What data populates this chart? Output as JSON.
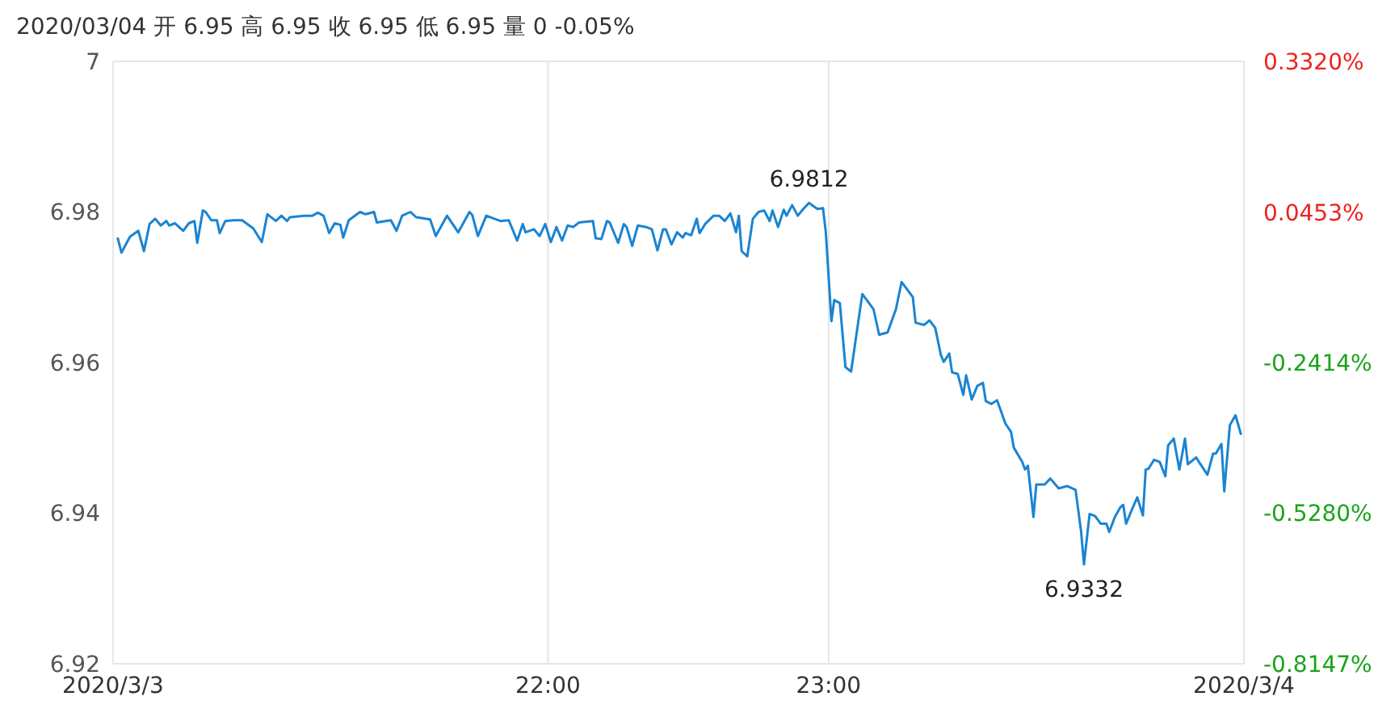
{
  "chart_data": {
    "type": "line",
    "title": "2020/03/04 开 6.95 高 6.95 收 6.95 低 6.95 量 0 -0.05%",
    "x": [
      20.466,
      20.48,
      20.51,
      20.54,
      20.56,
      20.58,
      20.6,
      20.62,
      20.64,
      20.65,
      20.67,
      20.7,
      20.72,
      20.74,
      20.75,
      20.77,
      20.78,
      20.8,
      20.82,
      20.83,
      20.85,
      20.88,
      20.91,
      20.95,
      20.98,
      21.0,
      21.03,
      21.05,
      21.07,
      21.08,
      21.13,
      21.16,
      21.18,
      21.2,
      21.22,
      21.24,
      21.26,
      21.27,
      21.29,
      21.33,
      21.35,
      21.38,
      21.39,
      21.44,
      21.46,
      21.48,
      21.51,
      21.53,
      21.55,
      21.58,
      21.6,
      21.64,
      21.68,
      21.72,
      21.73,
      21.75,
      21.78,
      21.83,
      21.86,
      21.89,
      21.91,
      21.92,
      21.95,
      21.97,
      21.99,
      22.01,
      22.03,
      22.05,
      22.07,
      22.09,
      22.11,
      22.16,
      22.17,
      22.19,
      22.21,
      22.22,
      22.25,
      22.27,
      22.28,
      22.3,
      22.32,
      22.35,
      22.37,
      22.39,
      22.41,
      22.42,
      22.44,
      22.46,
      22.48,
      22.49,
      22.51,
      22.53,
      22.54,
      22.56,
      22.59,
      22.61,
      22.63,
      22.65,
      22.67,
      22.68,
      22.69,
      22.71,
      22.73,
      22.75,
      22.77,
      22.79,
      22.8,
      22.82,
      22.84,
      22.85,
      22.87,
      22.89,
      22.91,
      22.93,
      22.96,
      22.98,
      22.99,
      23.01,
      23.02,
      23.04,
      23.06,
      23.08,
      23.12,
      23.16,
      23.18,
      23.21,
      23.24,
      23.26,
      23.3,
      23.31,
      23.34,
      23.36,
      23.38,
      23.4,
      23.41,
      23.43,
      23.44,
      23.46,
      23.48,
      23.49,
      23.51,
      23.53,
      23.55,
      23.56,
      23.58,
      23.6,
      23.61,
      23.63,
      23.65,
      23.66,
      23.69,
      23.7,
      23.71,
      23.73,
      23.74,
      23.77,
      23.79,
      23.82,
      23.85,
      23.88,
      23.9,
      23.91,
      23.93,
      23.95,
      23.97,
      23.99,
      24.0,
      24.02,
      24.04,
      24.05,
      24.06,
      24.08,
      24.1,
      24.12,
      24.13,
      24.14,
      24.16,
      24.18,
      24.2,
      24.21,
      24.23,
      24.25,
      24.27,
      24.28,
      24.31,
      24.32,
      24.35,
      24.37,
      24.38,
      24.4,
      24.41,
      24.43,
      24.45,
      24.47
    ],
    "series": [
      {
        "color": "#1a84d2",
        "values": [
          6.9766,
          6.9746,
          6.9767,
          6.9775,
          6.9748,
          6.9784,
          6.9791,
          6.9782,
          6.9788,
          6.9782,
          6.9785,
          6.9775,
          6.9785,
          6.9788,
          6.9759,
          6.9802,
          6.98,
          6.9789,
          6.9789,
          6.9772,
          6.9788,
          6.9789,
          6.9789,
          6.9778,
          6.976,
          6.9797,
          6.9788,
          6.9795,
          6.9788,
          6.9793,
          6.9795,
          6.9795,
          6.9799,
          6.9795,
          6.9772,
          6.9785,
          6.9783,
          6.9766,
          6.9789,
          6.98,
          6.9797,
          6.98,
          6.9786,
          6.9789,
          6.9775,
          6.9795,
          6.98,
          6.9793,
          6.9792,
          6.979,
          6.9768,
          6.9795,
          6.9773,
          6.98,
          6.9796,
          6.9768,
          6.9795,
          6.9788,
          6.9789,
          6.9762,
          6.9784,
          6.9773,
          6.9777,
          6.9768,
          6.9784,
          6.976,
          6.978,
          6.9762,
          6.9782,
          6.978,
          6.9786,
          6.9788,
          6.9765,
          6.9764,
          6.9788,
          6.9786,
          6.9759,
          6.9784,
          6.978,
          6.9755,
          6.9782,
          6.978,
          6.9777,
          6.9749,
          6.9777,
          6.9777,
          6.9757,
          6.9773,
          6.9766,
          6.9772,
          6.9769,
          6.9791,
          6.9772,
          6.9784,
          6.9795,
          6.9795,
          6.9788,
          6.9798,
          6.9773,
          6.9795,
          6.9748,
          6.9741,
          6.9791,
          6.98,
          6.9802,
          6.9788,
          6.9802,
          6.978,
          6.9803,
          6.9795,
          6.9809,
          6.9795,
          6.9804,
          6.9812,
          6.9804,
          6.9805,
          6.9773,
          6.9655,
          6.9683,
          6.9679,
          6.9594,
          6.9588,
          6.9691,
          6.9671,
          6.9637,
          6.964,
          6.9671,
          6.9707,
          6.9687,
          6.9653,
          6.965,
          6.9656,
          6.9646,
          6.961,
          6.9601,
          6.9612,
          6.9587,
          6.9585,
          6.9557,
          6.9583,
          6.9551,
          6.9569,
          6.9573,
          6.9549,
          6.9545,
          6.955,
          6.954,
          6.9519,
          6.9508,
          6.9487,
          6.9468,
          6.9458,
          6.9463,
          6.9395,
          6.9438,
          6.9438,
          6.9446,
          6.9433,
          6.9436,
          6.9431,
          6.9375,
          6.9332,
          6.9399,
          6.9396,
          6.9386,
          6.9386,
          6.9375,
          6.9395,
          6.9408,
          6.9411,
          6.9386,
          6.9404,
          6.9421,
          6.9397,
          6.9458,
          6.9459,
          6.9471,
          6.9468,
          6.9449,
          6.949,
          6.9499,
          6.9458,
          6.9499,
          6.9465,
          6.9474,
          6.9468,
          6.9451,
          6.9479,
          6.9479,
          6.9492,
          6.9429,
          6.9517,
          6.953,
          6.9504
        ]
      }
    ],
    "xlim": [
      20.45,
      24.48
    ],
    "xticks": [
      {
        "value": 20.45,
        "label": "2020/3/3"
      },
      {
        "value": 22,
        "label": "22:00"
      },
      {
        "value": 23,
        "label": "23:00"
      },
      {
        "value": 24.48,
        "label": "2020/3/4"
      }
    ],
    "ylim": [
      6.92,
      7
    ],
    "yticks": [
      6.92,
      6.94,
      6.96,
      6.98,
      7
    ],
    "y2lim": [
      -0.8147,
      0.332
    ],
    "y2ticks": [
      {
        "value": -0.8147,
        "label": "-0.8147%"
      },
      {
        "value": -0.528,
        "label": "-0.5280%"
      },
      {
        "value": -0.2414,
        "label": "-0.2414%"
      },
      {
        "value": 0.0453,
        "label": "0.0453%"
      },
      {
        "value": 0.332,
        "label": "0.3320%"
      }
    ],
    "annotations": [
      {
        "text": "6.9812",
        "x": 22.93,
        "y": 6.9812
      },
      {
        "text": "6.9332",
        "x": 23.91,
        "y": 6.9332
      }
    ],
    "grid": true,
    "marker": "none",
    "line_style": "solid"
  }
}
